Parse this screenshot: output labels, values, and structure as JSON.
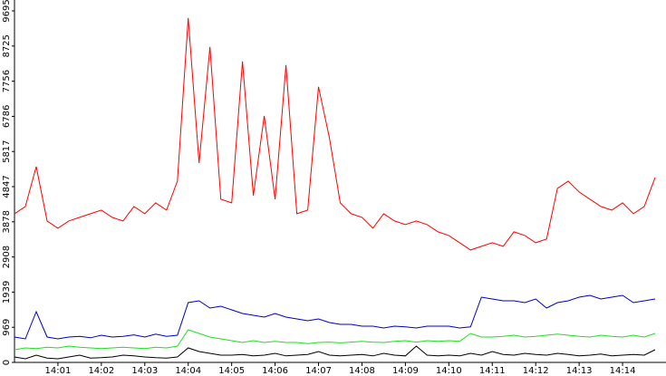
{
  "chart_data": {
    "type": "line",
    "x": [
      0,
      0.25,
      0.5,
      0.75,
      1,
      1.25,
      1.5,
      1.75,
      2,
      2.25,
      2.5,
      2.75,
      3,
      3.25,
      3.5,
      3.75,
      4,
      4.25,
      4.5,
      4.75,
      5,
      5.25,
      5.5,
      5.75,
      6,
      6.25,
      6.5,
      6.75,
      7,
      7.25,
      7.5,
      7.75,
      8,
      8.25,
      8.5,
      8.75,
      9,
      9.25,
      9.5,
      9.75,
      10,
      10.25,
      10.5,
      10.75,
      11,
      11.25,
      11.5,
      11.75,
      12,
      12.25,
      12.5,
      12.75,
      13,
      13.25,
      13.5,
      13.75,
      14,
      14.25,
      14.5,
      14.75
    ],
    "series": [
      {
        "color": "#ff0000",
        "values": [
          4100,
          4300,
          5400,
          3900,
          3700,
          3900,
          4000,
          4100,
          4200,
          4000,
          3900,
          4300,
          4100,
          4400,
          4200,
          5000,
          9500,
          5500,
          8700,
          4500,
          4400,
          8300,
          4600,
          6800,
          4500,
          8200,
          4100,
          4200,
          7600,
          6200,
          4400,
          4100,
          4000,
          3700,
          4100,
          3900,
          3800,
          3900,
          3800,
          3600,
          3500,
          3300,
          3100,
          3200,
          3300,
          3200,
          3600,
          3500,
          3300,
          3400,
          4800,
          5000,
          4700,
          4500,
          4300,
          4200,
          4400,
          4100,
          4300,
          5100
        ]
      },
      {
        "color": "#0000c0",
        "values": [
          700,
          650,
          1400,
          700,
          650,
          700,
          720,
          680,
          750,
          700,
          720,
          760,
          700,
          780,
          720,
          750,
          1650,
          1700,
          1500,
          1550,
          1450,
          1350,
          1300,
          1250,
          1350,
          1250,
          1200,
          1150,
          1200,
          1100,
          1050,
          1050,
          1000,
          1000,
          950,
          1000,
          980,
          950,
          1000,
          1000,
          1000,
          950,
          980,
          1800,
          1750,
          1700,
          1700,
          1650,
          1750,
          1500,
          1650,
          1700,
          1800,
          1850,
          1750,
          1800,
          1850,
          1650,
          1700,
          1750
        ]
      },
      {
        "color": "#22dd22",
        "values": [
          350,
          400,
          380,
          420,
          400,
          450,
          420,
          400,
          380,
          400,
          420,
          400,
          380,
          420,
          400,
          450,
          900,
          800,
          700,
          650,
          600,
          550,
          600,
          550,
          580,
          550,
          550,
          520,
          550,
          560,
          540,
          560,
          580,
          560,
          550,
          580,
          600,
          560,
          600,
          580,
          600,
          580,
          800,
          700,
          700,
          720,
          750,
          700,
          720,
          750,
          780,
          750,
          720,
          700,
          750,
          720,
          700,
          750,
          700,
          800
        ]
      },
      {
        "color": "#000000",
        "values": [
          150,
          100,
          200,
          120,
          100,
          150,
          200,
          120,
          130,
          150,
          200,
          180,
          150,
          130,
          120,
          150,
          400,
          300,
          250,
          200,
          200,
          220,
          180,
          200,
          250,
          180,
          200,
          220,
          300,
          200,
          180,
          200,
          220,
          180,
          250,
          200,
          180,
          450,
          200,
          180,
          200,
          180,
          250,
          200,
          300,
          220,
          200,
          250,
          220,
          200,
          250,
          220,
          180,
          200,
          230,
          180,
          200,
          220,
          200,
          350
        ]
      }
    ],
    "xlim": [
      0,
      15
    ],
    "xticks": [
      {
        "value": 1,
        "label": "14:01"
      },
      {
        "value": 2,
        "label": "14:02"
      },
      {
        "value": 3,
        "label": "14:03"
      },
      {
        "value": 4,
        "label": "14:04"
      },
      {
        "value": 5,
        "label": "14:05"
      },
      {
        "value": 6,
        "label": "14:06"
      },
      {
        "value": 7,
        "label": "14:07"
      },
      {
        "value": 8,
        "label": "14:08"
      },
      {
        "value": 9,
        "label": "14:09"
      },
      {
        "value": 10,
        "label": "14:10"
      },
      {
        "value": 11,
        "label": "14:11"
      },
      {
        "value": 12,
        "label": "14:12"
      },
      {
        "value": 13,
        "label": "14:13"
      },
      {
        "value": 14,
        "label": "14:14"
      }
    ],
    "ylim": [
      0,
      9695
    ],
    "yticks": [
      0,
      969,
      1939,
      2908,
      3878,
      4847,
      5817,
      6786,
      7756,
      8725,
      9695
    ],
    "grid": false
  }
}
